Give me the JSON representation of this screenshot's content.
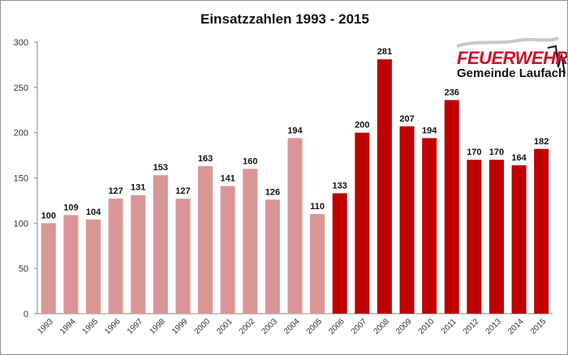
{
  "chart_data": {
    "type": "bar",
    "title": "Einsatzzahlen 1993 - 2015",
    "xlabel": "",
    "ylabel": "",
    "ylim": [
      0,
      300
    ],
    "yticks": [
      0,
      50,
      100,
      150,
      200,
      250,
      300
    ],
    "grid": false,
    "categories": [
      "1993",
      "1994",
      "1995",
      "1996",
      "1997",
      "1998",
      "1999",
      "2000",
      "2001",
      "2002",
      "2003",
      "2004",
      "2005",
      "2006",
      "2007",
      "2008",
      "2009",
      "2010",
      "2011",
      "2012",
      "2013",
      "2014",
      "2015"
    ],
    "values": [
      100,
      109,
      104,
      127,
      131,
      153,
      127,
      163,
      141,
      160,
      126,
      194,
      110,
      133,
      200,
      281,
      207,
      194,
      236,
      170,
      170,
      164,
      182
    ],
    "colors": {
      "before_2006": "#d99694",
      "from_2006": "#c00000"
    }
  },
  "logo": {
    "line1": "FEUERWEHR",
    "line2": "Gemeinde Laufach"
  }
}
